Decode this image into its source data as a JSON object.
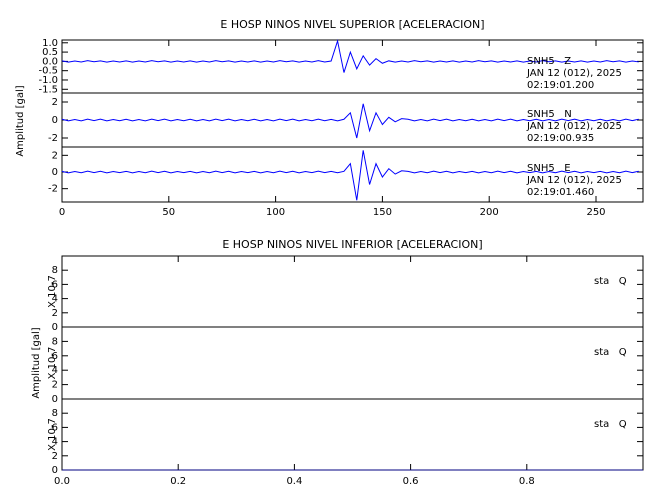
{
  "chart_data": [
    {
      "type": "line",
      "title": "E HOSP NINOS NIVEL SUPERIOR [ACELERACION]",
      "ylabel": "Amplitud [gal]",
      "xlim": [
        0,
        272
      ],
      "xticks": [
        0,
        50,
        100,
        150,
        200,
        250
      ],
      "x": [
        0,
        3,
        6,
        9,
        12,
        15,
        18,
        21,
        24,
        27,
        30,
        33,
        36,
        39,
        42,
        45,
        48,
        51,
        54,
        57,
        60,
        63,
        66,
        69,
        72,
        75,
        78,
        81,
        84,
        87,
        90,
        93,
        96,
        99,
        102,
        105,
        108,
        111,
        114,
        117,
        120,
        123,
        126,
        129,
        132,
        135,
        138,
        141,
        144,
        147,
        150,
        153,
        156,
        159,
        162,
        165,
        168,
        171,
        174,
        177,
        180,
        183,
        186,
        189,
        192,
        195,
        198,
        201,
        204,
        207,
        210,
        213,
        216,
        219,
        222,
        225,
        228,
        231,
        234,
        237,
        240,
        243,
        246,
        249,
        252,
        255,
        258,
        261,
        264,
        267,
        270
      ],
      "panels": [
        {
          "labels": [
            "SNH5   Z",
            "JAN 12 (012), 2025",
            "02:19:01.200"
          ],
          "ylim": [
            -1.7,
            1.15
          ],
          "yticks": [
            {
              "value": -1.5,
              "label": "-1.5"
            },
            {
              "value": -1.0,
              "label": "-1.0"
            },
            -0.5,
            {
              "value": 0,
              "label": "0.0"
            },
            0.5,
            {
              "value": 1.0,
              "label": "1.0"
            }
          ],
          "series": [
            {
              "color": "#0000ff",
              "values": [
                0.03,
                -0.04,
                0.02,
                -0.03,
                0.04,
                -0.02,
                0.03,
                -0.04,
                0.02,
                -0.03,
                0.03,
                -0.04,
                0.02,
                -0.03,
                0.04,
                -0.02,
                0.03,
                -0.04,
                0.02,
                -0.03,
                0.03,
                -0.04,
                0.02,
                -0.03,
                0.04,
                -0.02,
                0.03,
                -0.04,
                0.02,
                -0.03,
                0.03,
                -0.04,
                0.02,
                -0.03,
                0.04,
                -0.02,
                0.03,
                -0.04,
                0.02,
                -0.03,
                0.04,
                -0.03,
                0.02,
                1.1,
                -0.6,
                0.5,
                -0.4,
                0.3,
                -0.2,
                0.15,
                -0.1,
                0.03,
                -0.04,
                0.02,
                -0.03,
                0.04,
                -0.02,
                0.03,
                -0.04,
                0.02,
                -0.03,
                0.03,
                -0.04,
                0.02,
                -0.03,
                0.04,
                -0.02,
                0.03,
                -0.04,
                0.02,
                -0.03,
                0.03,
                -0.04,
                0.02,
                -0.03,
                0.04,
                -0.02,
                0.03,
                -0.04,
                0.02,
                -0.03,
                0.03,
                -0.04,
                0.02,
                -0.03,
                0.04,
                -0.02,
                0.03,
                -0.04,
                0.02,
                -0.03
              ]
            }
          ]
        },
        {
          "labels": [
            "SNH5   N",
            "JAN 12 (012), 2025",
            "02:19:00.935"
          ],
          "ylim": [
            -3,
            3
          ],
          "yticks": [
            -2,
            0,
            2
          ],
          "series": [
            {
              "color": "#0000ff",
              "values": [
                0.08,
                -0.1,
                0.06,
                -0.09,
                0.1,
                -0.07,
                0.09,
                -0.1,
                0.06,
                -0.08,
                0.08,
                -0.1,
                0.06,
                -0.09,
                0.1,
                -0.07,
                0.09,
                -0.1,
                0.06,
                -0.08,
                0.08,
                -0.1,
                0.06,
                -0.09,
                0.1,
                -0.07,
                0.09,
                -0.1,
                0.06,
                -0.08,
                0.08,
                -0.1,
                0.06,
                -0.09,
                0.1,
                -0.07,
                0.09,
                -0.1,
                0.06,
                -0.08,
                0.1,
                -0.08,
                0.07,
                -0.09,
                0.08,
                0.8,
                -2.0,
                1.8,
                -1.2,
                0.8,
                -0.5,
                0.3,
                -0.2,
                0.15,
                0.08,
                -0.1,
                0.06,
                -0.09,
                0.1,
                -0.07,
                0.09,
                -0.1,
                0.06,
                -0.08,
                0.08,
                -0.1,
                0.06,
                -0.09,
                0.1,
                -0.07,
                0.09,
                -0.1,
                0.06,
                -0.08,
                0.08,
                -0.1,
                0.06,
                -0.09,
                0.1,
                -0.07,
                0.09,
                -0.1,
                0.06,
                -0.08,
                0.08,
                -0.1,
                0.06,
                -0.09,
                0.1,
                -0.07,
                0.09
              ]
            }
          ]
        },
        {
          "labels": [
            "SNH5   E",
            "JAN 12 (012), 2025",
            "02:19:01.460"
          ],
          "ylim": [
            -3.6,
            3
          ],
          "yticks": [
            -2,
            0,
            2
          ],
          "series": [
            {
              "color": "#0000ff",
              "values": [
                0.08,
                -0.1,
                0.06,
                -0.09,
                0.1,
                -0.07,
                0.09,
                -0.1,
                0.06,
                -0.08,
                0.08,
                -0.1,
                0.06,
                -0.09,
                0.1,
                -0.07,
                0.09,
                -0.1,
                0.06,
                -0.08,
                0.08,
                -0.1,
                0.06,
                -0.09,
                0.1,
                -0.07,
                0.09,
                -0.1,
                0.06,
                -0.08,
                0.08,
                -0.1,
                0.06,
                -0.09,
                0.1,
                -0.07,
                0.09,
                -0.1,
                0.06,
                -0.08,
                0.1,
                -0.08,
                0.07,
                -0.09,
                0.08,
                1.0,
                -3.4,
                2.6,
                -1.5,
                1.0,
                -0.6,
                0.4,
                -0.25,
                0.15,
                0.08,
                -0.1,
                0.06,
                -0.09,
                0.1,
                -0.07,
                0.09,
                -0.1,
                0.06,
                -0.08,
                0.08,
                -0.1,
                0.06,
                -0.09,
                0.1,
                -0.07,
                0.09,
                -0.1,
                0.06,
                -0.08,
                0.08,
                -0.1,
                0.06,
                -0.09,
                0.1,
                -0.07,
                0.09,
                -0.1,
                0.06,
                -0.08,
                0.08,
                -0.1,
                0.06,
                -0.09,
                0.1,
                -0.07,
                0.09
              ]
            }
          ]
        }
      ]
    },
    {
      "type": "line",
      "title": "E HOSP NINOS NIVEL INFERIOR [ACELERACION]",
      "ylabel": "Amplitud [gal]",
      "xlim": [
        0,
        1
      ],
      "xticks": [
        {
          "value": 0,
          "label": "0.0"
        },
        0.2,
        0.4,
        0.6,
        0.8
      ],
      "x": [
        0,
        1
      ],
      "panels": [
        {
          "labels": [
            "sta   Q"
          ],
          "scale_label": "X 10-7",
          "ylim": [
            0,
            10
          ],
          "yticks": [
            0,
            2,
            4,
            6,
            8
          ],
          "series": [
            {
              "color": "#000080",
              "values": [
                0,
                0
              ]
            }
          ]
        },
        {
          "labels": [
            "sta   Q"
          ],
          "scale_label": "X 10-7",
          "ylim": [
            0,
            10
          ],
          "yticks": [
            0,
            2,
            4,
            6,
            8
          ],
          "series": [
            {
              "color": "#000080",
              "values": [
                0,
                0
              ]
            }
          ]
        },
        {
          "labels": [
            "sta   Q"
          ],
          "scale_label": "X 10-7",
          "ylim": [
            0,
            10
          ],
          "yticks": [
            0,
            2,
            4,
            6,
            8
          ],
          "series": [
            {
              "color": "#000080",
              "values": [
                0,
                0
              ]
            }
          ]
        }
      ]
    }
  ]
}
